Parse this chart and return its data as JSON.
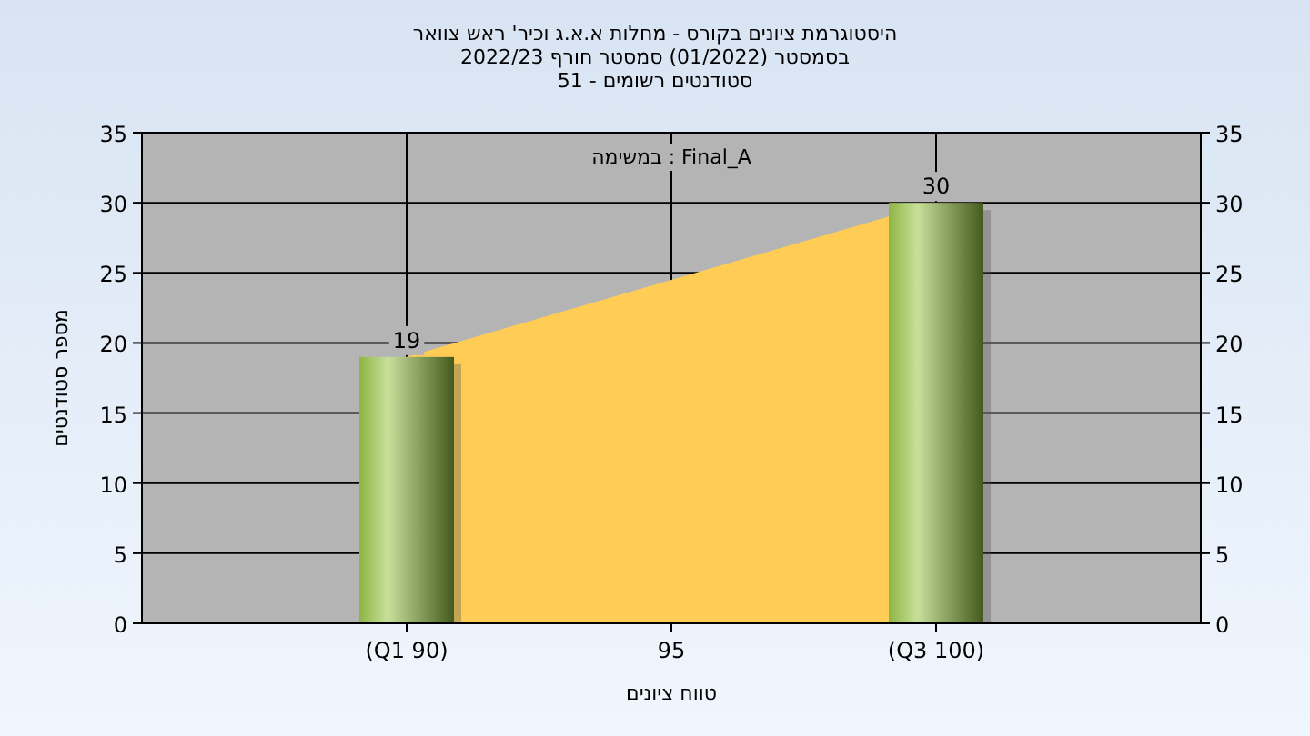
{
  "chart_data": {
    "type": "bar",
    "title": "היסטוגרמת ציונים בקורס - מחלות א.א.ג וכיר' ראש צוואר",
    "subtitle": "בסמסטר  (01/2022)  סמסטר חורף 2022/23\nסטודנטים רשומים - 51",
    "xlabel": "טווח ציונים",
    "ylabel": "מספר סטודנטים",
    "annotations": [
      "במשימה : Final_A"
    ],
    "categories": [
      "(Q1 90)",
      "95",
      "(Q3 100)"
    ],
    "series": [
      {
        "type": "area",
        "color": "#ffcc55",
        "values": [
          19,
          24.5,
          30
        ]
      },
      {
        "color": "#8db543",
        "values": [
          19,
          null,
          30
        ],
        "value_labels": [
          "19",
          null,
          "30"
        ]
      }
    ],
    "ylim": [
      0,
      35
    ],
    "yticks": [
      0,
      5,
      10,
      15,
      20,
      25,
      30,
      35
    ],
    "y2lim": [
      0,
      35
    ],
    "y2ticks": [
      0,
      5,
      10,
      15,
      20,
      25,
      30,
      35
    ],
    "grid": true
  }
}
